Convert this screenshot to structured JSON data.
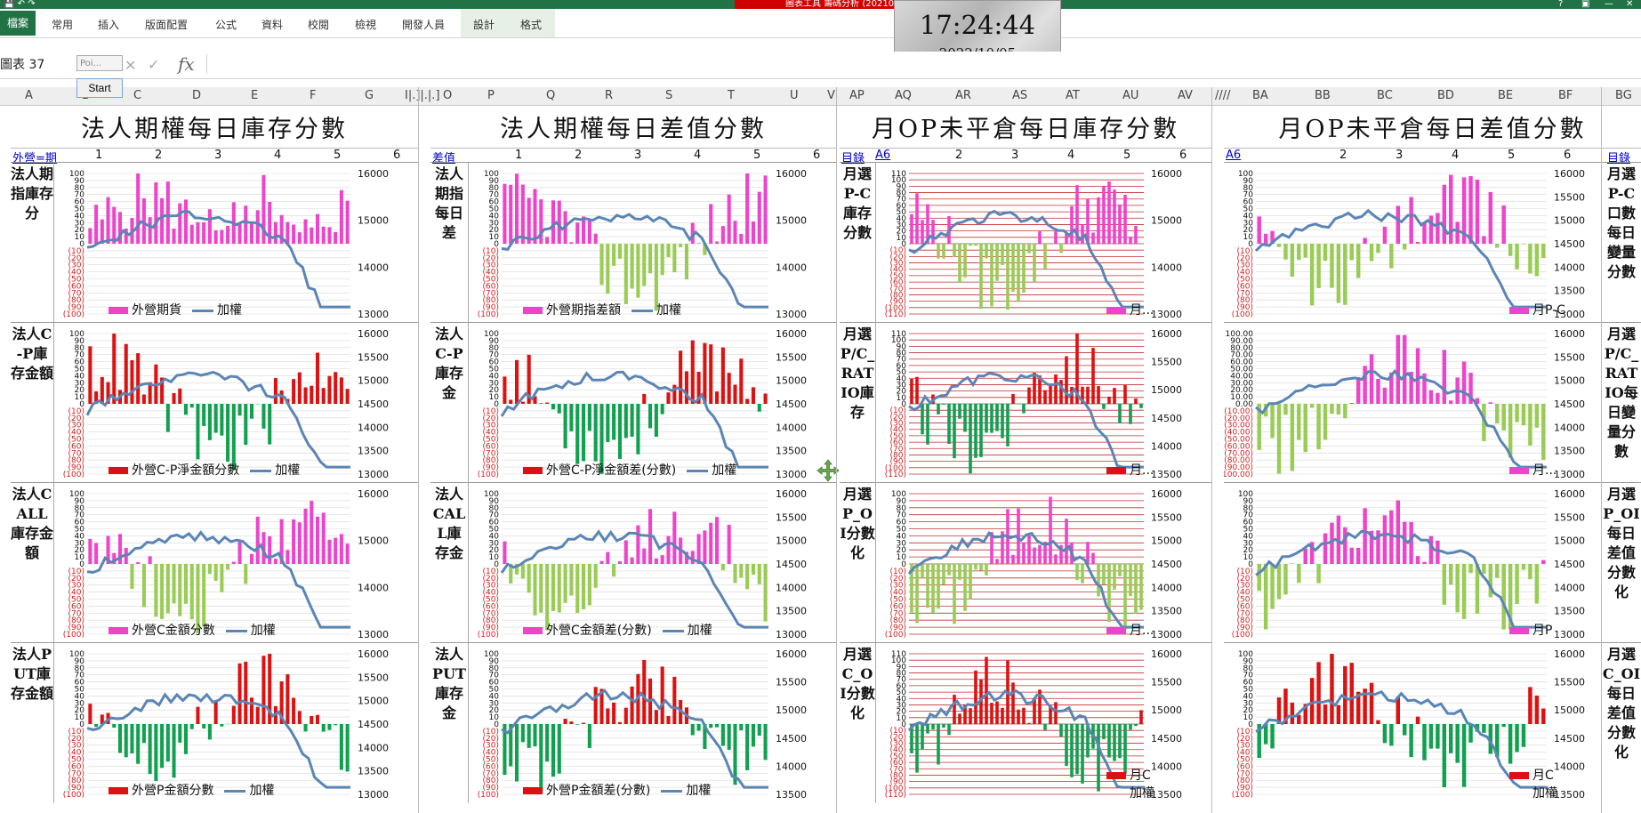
{
  "app": {
    "title": "籌碼分析 (20210805)_20221003.xlsm - Ex",
    "context_tab_group": "圖表工具",
    "file_tab": "檔案",
    "tabs": [
      "常用",
      "插入",
      "版面配置",
      "公式",
      "資料",
      "校閱",
      "檢視",
      "開發人員",
      "設計",
      "格式"
    ],
    "window_controls": [
      "?",
      "▣",
      "—",
      "□",
      "✕"
    ],
    "qat": "💾 ↶ ↷"
  },
  "clock": {
    "time": "17:24:44",
    "date": "2022/10/05",
    "mark": "N"
  },
  "formula_bar": {
    "name_box": "圖表 37",
    "fx": "fx",
    "value": "",
    "mini_value": "Poi...",
    "start_button": "Start"
  },
  "column_headers": [
    "A",
    "B",
    "C",
    "D",
    "E",
    "F",
    "G",
    "I|.]|.|.]",
    "O",
    "P",
    "Q",
    "R",
    "S",
    "T",
    "U",
    "V",
    "AP",
    "AQ",
    "AR",
    "AS",
    "AT",
    "AU",
    "AV",
    "////",
    "BA",
    "BB",
    "BC",
    "BD",
    "BE",
    "BF",
    "BG"
  ],
  "colors": {
    "pink": "#ee44cc",
    "lightgreen": "#99cc55",
    "red": "#dd1111",
    "green": "#11a050",
    "line": "#5b85b5",
    "excel_green": "#217346"
  },
  "panels": [
    {
      "title": "法人期權每日庫存分數",
      "header_link": "外營=期",
      "ticks": [
        "1",
        "2",
        "3",
        "4",
        "5",
        "6"
      ],
      "rows": [
        {
          "label": "法人期指庫存分",
          "legend": "外營期貨",
          "line": "加權",
          "scheme": "pink_pink",
          "yleft_pos": [
            "100",
            "90",
            "80",
            "70",
            "60",
            "50",
            "40",
            "30",
            "20",
            "10",
            "0"
          ],
          "yleft_neg": [
            "(10)",
            "(20)",
            "(30)",
            "(40)",
            "(50)",
            "(60)",
            "(70)",
            "(80)",
            "(90)",
            "(100)"
          ],
          "yright": [
            "16000",
            "15000",
            "14000",
            "13000"
          ]
        },
        {
          "label": "法人C-P庫存金額",
          "legend": "外營C-P淨金額分數",
          "line": "加權",
          "scheme": "red_green",
          "yleft_pos": [
            "100",
            "90",
            "80",
            "70",
            "60",
            "50",
            "40",
            "30",
            "20",
            "10",
            "0"
          ],
          "yleft_neg": [
            "(10)",
            "(20)",
            "(30)",
            "(40)",
            "(50)",
            "(60)",
            "(70)",
            "(80)",
            "(90)",
            "(100)"
          ],
          "yright": [
            "16000",
            "15500",
            "15000",
            "14500",
            "14000",
            "13500",
            "13000"
          ]
        },
        {
          "label": "法人CALL庫存金額",
          "legend": "外營C金額分數",
          "line": "加權",
          "scheme": "pink_lg",
          "yleft_pos": [
            "100",
            "90",
            "80",
            "70",
            "60",
            "50",
            "40",
            "30",
            "20",
            "10",
            "0"
          ],
          "yleft_neg": [
            "(10)",
            "(20)",
            "(30)",
            "(40)",
            "(50)",
            "(60)",
            "(70)",
            "(80)",
            "(90)",
            "(100)"
          ],
          "yright": [
            "16000",
            "15000",
            "14000",
            "13000"
          ]
        },
        {
          "label": "法人PUT庫存金額",
          "legend": "外營P金額分數",
          "line": "加權",
          "scheme": "red_green",
          "yleft_pos": [
            "100",
            "90",
            "80",
            "70",
            "60",
            "50",
            "40",
            "30",
            "20",
            "10",
            "0"
          ],
          "yleft_neg": [
            "(10)",
            "(20)",
            "(30)",
            "(40)",
            "(50)",
            "(60)",
            "(70)",
            "(80)",
            "(90)",
            "(100)"
          ],
          "yright": [
            "16000",
            "15500",
            "15000",
            "14500",
            "14000",
            "13500",
            "13000"
          ]
        }
      ]
    },
    {
      "title": "法人期權每日差值分數",
      "header_link": "差值",
      "ticks": [
        "1",
        "2",
        "3",
        "4",
        "5",
        "6"
      ],
      "rows": [
        {
          "label": "法人期指每日差",
          "legend": "外營期指差額",
          "line": "加權",
          "scheme": "pink_lg",
          "yleft_pos": [
            "100",
            "90",
            "80",
            "70",
            "60",
            "50",
            "40",
            "30",
            "20",
            "10",
            "0"
          ],
          "yleft_neg": [
            "(10)",
            "(20)",
            "(30)",
            "(40)",
            "(50)",
            "(60)",
            "(70)",
            "(80)",
            "(90)",
            "(100)"
          ],
          "yright": [
            "16000",
            "15000",
            "14000",
            "13000"
          ]
        },
        {
          "label": "法人C-P庫存金",
          "legend": "外營C-P淨金額差(分數)",
          "line": "加權",
          "scheme": "red_green",
          "yleft_pos": [
            "100",
            "90",
            "80",
            "70",
            "60",
            "50",
            "40",
            "30",
            "20",
            "10",
            "0"
          ],
          "yleft_neg": [
            "(10)",
            "(20)",
            "(30)",
            "(40)",
            "(50)",
            "(60)",
            "(70)",
            "(80)",
            "(90)",
            "(100)"
          ],
          "yright": [
            "16000",
            "15500",
            "15000",
            "14500",
            "14000",
            "13500",
            "13000"
          ]
        },
        {
          "label": "法人CALL庫存金",
          "legend": "外營C金額差(分數)",
          "line": "加權",
          "scheme": "pink_lg",
          "yleft_pos": [
            "100",
            "90",
            "80",
            "70",
            "60",
            "50",
            "40",
            "30",
            "20",
            "10",
            "0"
          ],
          "yleft_neg": [
            "(10)",
            "(20)",
            "(30)",
            "(40)",
            "(50)",
            "(60)",
            "(70)",
            "(80)",
            "(90)",
            "(100)"
          ],
          "yright": [
            "16000",
            "15500",
            "15000",
            "14500",
            "14000",
            "13500",
            "13000"
          ]
        },
        {
          "label": "法人PUT庫存金",
          "legend": "外營P金額差(分數)",
          "line": "加權",
          "scheme": "red_green",
          "yleft_pos": [
            "100",
            "90",
            "80",
            "70",
            "60",
            "50",
            "40",
            "30",
            "20",
            "10",
            "0"
          ],
          "yleft_neg": [
            "(10)",
            "(20)",
            "(30)",
            "(40)",
            "(50)",
            "(60)",
            "(70)",
            "(80)",
            "(90)",
            "(100)"
          ],
          "yright": [
            "16000",
            "15500",
            "15000",
            "14500",
            "14000",
            "13500"
          ]
        }
      ]
    },
    {
      "title": "月OP未平倉每日庫存分數",
      "header_link": "目錄",
      "header_link2": "A6",
      "ticks": [
        "2",
        "3",
        "4",
        "5",
        "6"
      ],
      "rows": [
        {
          "label": "月選P-C庫存分數",
          "legend": "月...",
          "line": "",
          "scheme": "pink_lg",
          "yleft_pos": [
            "110",
            "100",
            "90",
            "80",
            "70",
            "60",
            "50",
            "40",
            "30",
            "20",
            "10",
            "0"
          ],
          "yleft_neg": [
            "(10)",
            "(20)",
            "(30)",
            "(40)",
            "(50)",
            "(60)",
            "(70)",
            "(80)",
            "(90)",
            "(100)",
            "(110)"
          ],
          "yright": [
            "16000",
            "15000",
            "14000",
            "13000"
          ]
        },
        {
          "label": "月選P/C_RATIO庫存",
          "legend": "月...",
          "line": "",
          "scheme": "red_green",
          "yleft_pos": [
            "110",
            "100",
            "90",
            "80",
            "70",
            "60",
            "50",
            "40",
            "30",
            "20",
            "10",
            "0"
          ],
          "yleft_neg": [
            "(10)",
            "(20)",
            "(30)",
            "(40)",
            "(50)",
            "(60)",
            "(70)",
            "(80)",
            "(90)",
            "(100)",
            "(110)"
          ],
          "yright": [
            "16000",
            "15500",
            "15000",
            "14500",
            "14000",
            "13500"
          ]
        },
        {
          "label": "月選P_OI分數化",
          "legend": "月...",
          "line": "",
          "scheme": "pink_lg",
          "yleft_pos": [
            "100",
            "90",
            "80",
            "70",
            "60",
            "50",
            "40",
            "30",
            "20",
            "10",
            "0"
          ],
          "yleft_neg": [
            "(10)",
            "(20)",
            "(30)",
            "(40)",
            "(50)",
            "(60)",
            "(70)",
            "(80)",
            "(90)",
            "(100)"
          ],
          "yright": [
            "16000",
            "15500",
            "15000",
            "14500",
            "14000",
            "13500",
            "13000"
          ]
        },
        {
          "label": "月選C_OI分數化",
          "legend": "月C",
          "line": "加權",
          "scheme": "red_green",
          "yleft_pos": [
            "110",
            "100",
            "90",
            "80",
            "70",
            "60",
            "50",
            "40",
            "30",
            "20",
            "10",
            "0"
          ],
          "yleft_neg": [
            "(10)",
            "(20)",
            "(30)",
            "(40)",
            "(50)",
            "(60)",
            "(70)",
            "(80)",
            "(90)",
            "(100)",
            "(110)"
          ],
          "yright": [
            "16000",
            "15500",
            "15000",
            "14500",
            "14000",
            "13500"
          ]
        }
      ]
    },
    {
      "title": "月OP未平倉每日差值分數",
      "header_link": "A6",
      "header_link_right": "目錄",
      "ticks": [
        "2",
        "3",
        "4",
        "5",
        "6"
      ],
      "rows": [
        {
          "label": "月選P-C口數每日變量分數",
          "legend": "月P-C",
          "line": "",
          "scheme": "pink_lg",
          "yleft_pos": [
            "100",
            "90",
            "80",
            "70",
            "60",
            "50",
            "40",
            "30",
            "20",
            "10",
            "0"
          ],
          "yleft_neg": [
            "(10)",
            "(20)",
            "(30)",
            "(40)",
            "(50)",
            "(60)",
            "(70)",
            "(80)",
            "(90)",
            "(100)"
          ],
          "yright": [
            "16000",
            "15500",
            "15000",
            "14500",
            "14000",
            "13500",
            "13000"
          ]
        },
        {
          "label": "月選P/C_RATIO每日變量分數",
          "legend": "月...",
          "line": "",
          "scheme": "pink_lg",
          "yleft_pos": [
            "100.00",
            "90.00",
            "80.00",
            "70.00",
            "60.00",
            "50.00",
            "40.00",
            "30.00",
            "20.00",
            "10.00",
            "0.00"
          ],
          "yleft_neg": [
            "(10.00)",
            "(20.00)",
            "(30.00)",
            "(40.00)",
            "(50.00)",
            "(60.00)",
            "(70.00)",
            "(80.00)",
            "(90.00)",
            "(100.00)"
          ],
          "yright": [
            "16000",
            "15500",
            "15000",
            "14500",
            "14000",
            "13500",
            "13000"
          ]
        },
        {
          "label": "月選P_OI每日差值分數化",
          "legend": "月P",
          "line": "",
          "scheme": "pink_lg",
          "yleft_pos": [
            "100",
            "90",
            "80",
            "70",
            "60",
            "50",
            "40",
            "30",
            "20",
            "10",
            "0"
          ],
          "yleft_neg": [
            "(10)",
            "(20)",
            "(30)",
            "(40)",
            "(50)",
            "(60)",
            "(70)",
            "(80)",
            "(90)",
            "(100)"
          ],
          "yright": [
            "16000",
            "15500",
            "15000",
            "14500",
            "14000",
            "13500",
            "13000"
          ]
        },
        {
          "label": "月選C_OI每日差值分數化",
          "legend": "月C",
          "line": "加權",
          "scheme": "red_green",
          "yleft_pos": [
            "100",
            "90",
            "80",
            "70",
            "60",
            "50",
            "40",
            "30",
            "20",
            "10",
            "0"
          ],
          "yleft_neg": [
            "(10)",
            "(20)",
            "(30)",
            "(40)",
            "(50)",
            "(60)",
            "(70)",
            "(80)",
            "(90)",
            "(100)"
          ],
          "yright": [
            "16000",
            "15500",
            "15000",
            "14500",
            "14000",
            "13500"
          ]
        }
      ]
    }
  ]
}
